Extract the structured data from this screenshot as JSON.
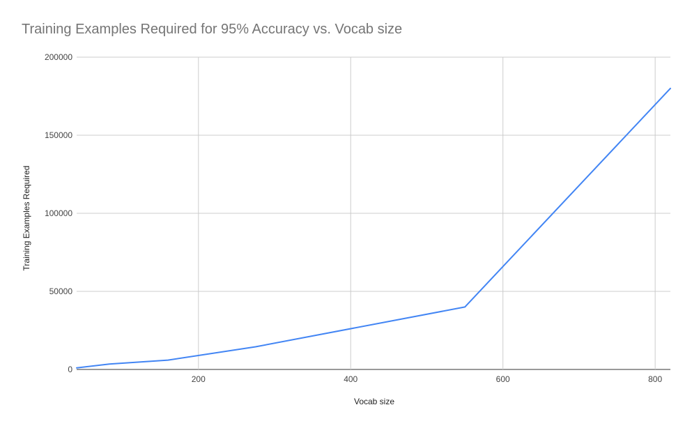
{
  "chart_data": {
    "type": "line",
    "title": "Training Examples Required for 95% Accuracy vs. Vocab size",
    "xlabel": "Vocab size",
    "ylabel": "Training Examples Required",
    "xlim": [
      40,
      820
    ],
    "ylim": [
      0,
      200000
    ],
    "x_ticks": [
      200,
      400,
      600,
      800
    ],
    "y_ticks": [
      0,
      50000,
      100000,
      150000,
      200000
    ],
    "grid": true,
    "legend": "none",
    "series": [
      {
        "color": "#4285f4",
        "x": [
          40,
          83,
          160,
          275,
          550,
          820
        ],
        "y": [
          1000,
          3500,
          6000,
          14500,
          40000,
          180000
        ]
      }
    ]
  }
}
